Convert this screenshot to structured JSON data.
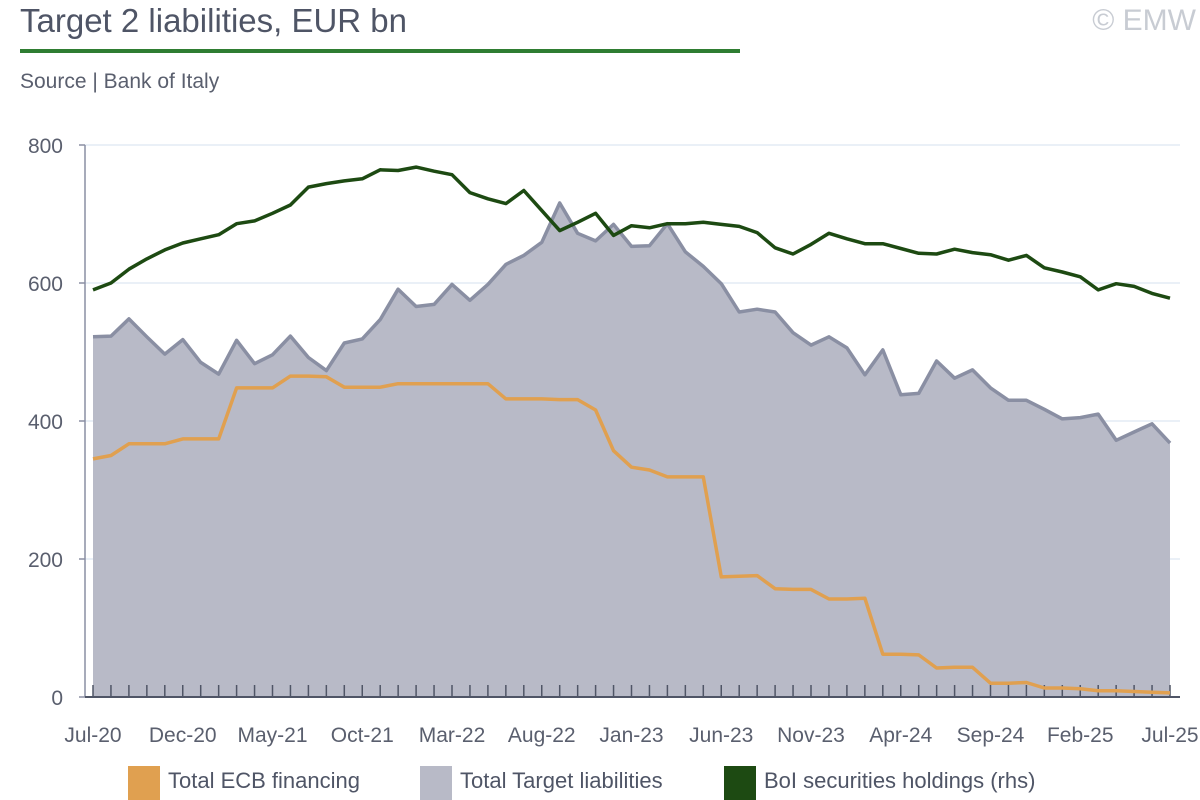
{
  "header": {
    "title": "Target 2 liabilities, EUR bn",
    "source": "Source | Bank of Italy",
    "copyright": "© EMW"
  },
  "colors": {
    "title_rule": "#2f7d32",
    "ecb_financing": "#e0a050",
    "target_liabilities_line": "#8a8fa3",
    "target_liabilities_fill": "#b8bac7",
    "boi_holdings": "#1d4a12",
    "gridline": "#dde7f2"
  },
  "legend": [
    {
      "label": "Total ECB financing",
      "color": "#e0a050"
    },
    {
      "label": "Total Target liabilities",
      "color": "#b8bac7"
    },
    {
      "label": "BoI securities holdings (rhs)",
      "color": "#1d4a12"
    }
  ],
  "chart_data": {
    "type": "line",
    "title": "Target 2 liabilities, EUR bn",
    "xlabel": "",
    "ylabel": "",
    "ylim": [
      0,
      800
    ],
    "yticks": [
      0,
      200,
      400,
      600,
      800
    ],
    "grid": true,
    "legend_position": "bottom",
    "x_tick_labels": [
      "Jul-20",
      "Dec-20",
      "May-21",
      "Oct-21",
      "Mar-22",
      "Aug-22",
      "Jan-23",
      "Jun-23",
      "Nov-23",
      "Apr-24",
      "Sep-24",
      "Feb-25",
      "Jul-25"
    ],
    "x_start": "2020-07",
    "x_end": "2025-07",
    "series": [
      {
        "name": "Total Target liabilities",
        "style": "area",
        "values": [
          522,
          523,
          548,
          522,
          497,
          518,
          485,
          468,
          517,
          483,
          496,
          523,
          492,
          473,
          513,
          519,
          547,
          591,
          566,
          569,
          598,
          575,
          598,
          627,
          640,
          659,
          716,
          672,
          661,
          685,
          653,
          654,
          686,
          645,
          624,
          599,
          558,
          562,
          558,
          528,
          510,
          522,
          506,
          467,
          503,
          438,
          440,
          487,
          462,
          474,
          448,
          430,
          430,
          417,
          403,
          405,
          410,
          372,
          384,
          396,
          368
        ]
      },
      {
        "name": "Total ECB financing",
        "style": "line",
        "values": [
          345,
          350,
          367,
          367,
          367,
          374,
          374,
          374,
          448,
          448,
          448,
          465,
          465,
          464,
          449,
          449,
          449,
          454,
          454,
          454,
          454,
          454,
          454,
          432,
          432,
          432,
          431,
          431,
          416,
          357,
          333,
          329,
          319,
          319,
          319,
          174,
          175,
          176,
          157,
          156,
          156,
          142,
          142,
          143,
          62,
          62,
          61,
          42,
          43,
          43,
          20,
          20,
          21,
          13,
          13,
          12,
          9,
          9,
          8,
          7,
          6
        ]
      },
      {
        "name": "BoI securities holdings (rhs)",
        "style": "line",
        "values": [
          590,
          600,
          620,
          635,
          648,
          658,
          664,
          670,
          686,
          690,
          701,
          713,
          739,
          744,
          748,
          751,
          764,
          763,
          768,
          762,
          757,
          731,
          722,
          715,
          734,
          705,
          676,
          688,
          701,
          669,
          683,
          680,
          686,
          686,
          688,
          685,
          682,
          673,
          651,
          642,
          656,
          672,
          664,
          657,
          657,
          650,
          643,
          642,
          649,
          644,
          641,
          633,
          640,
          622,
          616,
          609,
          590,
          599,
          595,
          585,
          578
        ]
      }
    ]
  }
}
